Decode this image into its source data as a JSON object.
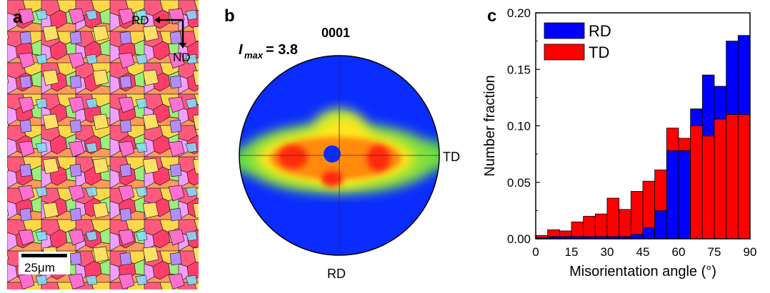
{
  "panel_a": {
    "label": "a",
    "rd_label": "RD",
    "nd_label": "ND",
    "scale_label": "25μm"
  },
  "panel_b": {
    "label": "b",
    "imax_symbol": "I",
    "imax_sub": "max",
    "imax_value": "= 3.8",
    "plane": "0001",
    "td_label": "TD",
    "rd_label": "RD"
  },
  "chart_data": {
    "type": "bar",
    "panel_label": "c",
    "xlabel": "Misorientation angle (°)",
    "ylabel": "Number fraction",
    "xlim": [
      0,
      90
    ],
    "ylim": [
      0,
      0.2
    ],
    "xticks": [
      "0",
      "15",
      "30",
      "45",
      "60",
      "75",
      "90"
    ],
    "yticks": [
      "0.00",
      "0.05",
      "0.10",
      "0.15",
      "0.20"
    ],
    "bin_width": 5,
    "bin_centers": [
      2.5,
      7.5,
      12.5,
      17.5,
      22.5,
      27.5,
      32.5,
      37.5,
      42.5,
      47.5,
      52.5,
      57.5,
      62.5,
      67.5,
      72.5,
      77.5,
      82.5,
      87.5
    ],
    "series": [
      {
        "name": "RD",
        "color": "#0000FF",
        "values": [
          0.001,
          0.002,
          0.002,
          0.002,
          0.002,
          0.002,
          0.002,
          0.002,
          0.004,
          0.01,
          0.025,
          0.078,
          0.078,
          0.115,
          0.145,
          0.135,
          0.175,
          0.18
        ]
      },
      {
        "name": "TD",
        "color": "#FF0000",
        "values": [
          0.003,
          0.008,
          0.007,
          0.015,
          0.02,
          0.022,
          0.036,
          0.026,
          0.042,
          0.051,
          0.061,
          0.098,
          0.089,
          0.1,
          0.091,
          0.106,
          0.11,
          0.11
        ]
      }
    ],
    "legend": [
      "RD",
      "TD"
    ],
    "legend_position": "top-left"
  }
}
